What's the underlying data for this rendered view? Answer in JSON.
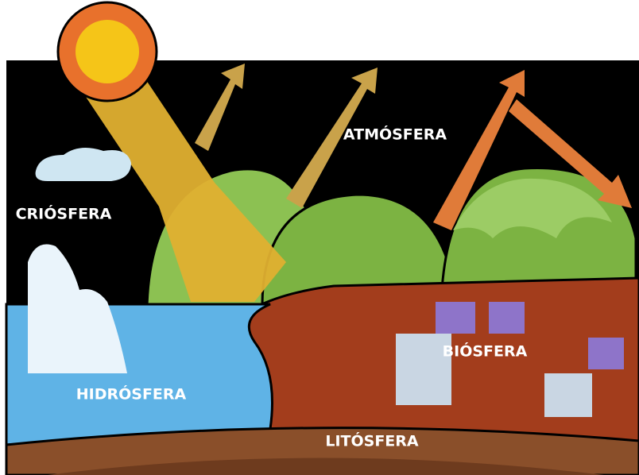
{
  "labels": {
    "atmosphere": "ATMÓSFERA",
    "cryosphere": "CRIÓSFERA",
    "biosphere": "BIÓSFERA",
    "hydrosphere": "HIDRÓSFERA",
    "lithosphere": "LITÓSFERA"
  }
}
